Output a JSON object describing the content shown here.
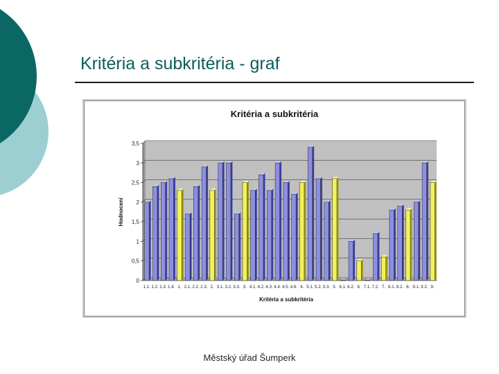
{
  "slide": {
    "title": "Kritéria a subkritéria - graf",
    "footer": "Městský úřad Šumperk",
    "accent_colors": {
      "dark_teal": "#0b6764",
      "light_teal": "#9ccfd1"
    }
  },
  "chart_data": {
    "type": "bar",
    "title": "Kritéria a subkritéria",
    "xlabel": "Kritéria a subkritéria",
    "ylabel": "Hodnocení",
    "ylim": [
      0,
      3.5
    ],
    "yticks": [
      "0",
      "0,5",
      "1",
      "1,5",
      "2",
      "2,5",
      "3",
      "3,5"
    ],
    "ytick_values": [
      0,
      0.5,
      1,
      1.5,
      2,
      2.5,
      3,
      3.5
    ],
    "grid": true,
    "legend": "none",
    "colors": {
      "subcriterion": "#8c8fe0",
      "criterion": "#f2f25a",
      "plot_background": "#c0c0c0"
    },
    "categories": [
      "1.1.",
      "1.2.",
      "1.3.",
      "1.4.",
      "1.",
      "2.1.",
      "2.2.",
      "2.3.",
      "2.",
      "3.1.",
      "3.2.",
      "3.3.",
      "3.",
      "4.1.",
      "4.2.",
      "4.3.",
      "4.4.",
      "4.5.",
      "4.6.",
      "4.",
      "5.1.",
      "5.2.",
      "5.3.",
      "5.",
      "6.1.",
      "6.2.",
      "6.",
      "7.1.",
      "7.2.",
      "7.",
      "8.1.",
      "8.2.",
      "8.",
      "9.1.",
      "9.2.",
      "9."
    ],
    "values": [
      2.0,
      2.4,
      2.5,
      2.6,
      2.3,
      1.7,
      2.4,
      2.9,
      2.3,
      3.0,
      3.0,
      1.7,
      2.5,
      2.3,
      2.7,
      2.3,
      3.0,
      2.5,
      2.2,
      2.5,
      3.4,
      2.6,
      2.0,
      2.6,
      0.0,
      1.0,
      0.5,
      0.0,
      1.2,
      0.6,
      1.8,
      1.9,
      1.8,
      2.0,
      3.0,
      2.5
    ],
    "kinds": [
      "sub",
      "sub",
      "sub",
      "sub",
      "crit",
      "sub",
      "sub",
      "sub",
      "crit",
      "sub",
      "sub",
      "sub",
      "crit",
      "sub",
      "sub",
      "sub",
      "sub",
      "sub",
      "sub",
      "crit",
      "sub",
      "sub",
      "sub",
      "crit",
      "sub",
      "sub",
      "crit",
      "sub",
      "sub",
      "crit",
      "sub",
      "sub",
      "crit",
      "sub",
      "sub",
      "crit"
    ]
  }
}
